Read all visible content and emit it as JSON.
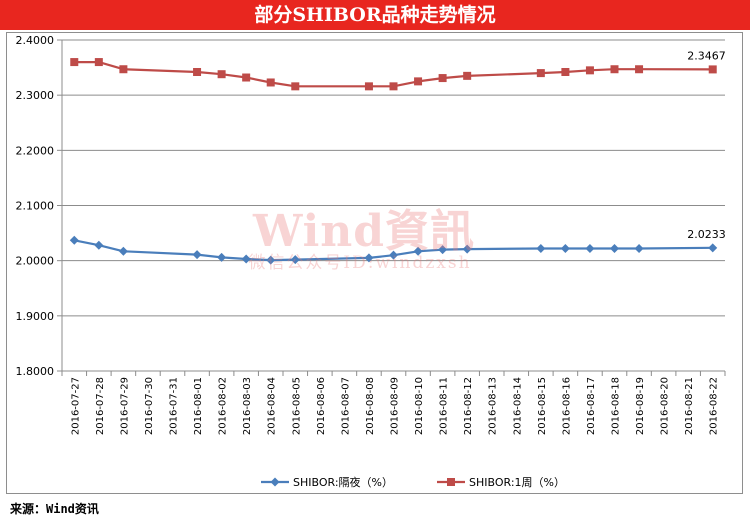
{
  "header": {
    "title": "部分SHIBOR品种走势情况"
  },
  "watermark": {
    "main": "Wind資訊",
    "sub": "微信公众号ID:windzxsh"
  },
  "source": "来源：Wind资讯",
  "colors": {
    "title_bg": "#e8261f",
    "series_overnight": "#4a7ebb",
    "series_1w": "#be4b48"
  },
  "chart_data": {
    "type": "line",
    "title": "部分SHIBOR品种走势情况",
    "xlabel": "",
    "ylabel": "",
    "ylim": [
      1.8,
      2.4
    ],
    "yticks": [
      "1.8000",
      "1.9000",
      "2.0000",
      "2.1000",
      "2.2000",
      "2.3000",
      "2.4000"
    ],
    "grid": "horizontal",
    "legend": "bottom",
    "categories": [
      "2016-07-27",
      "2016-07-28",
      "2016-07-29",
      "2016-07-30",
      "2016-07-31",
      "2016-08-01",
      "2016-08-02",
      "2016-08-03",
      "2016-08-04",
      "2016-08-05",
      "2016-08-06",
      "2016-08-07",
      "2016-08-08",
      "2016-08-09",
      "2016-08-10",
      "2016-08-11",
      "2016-08-12",
      "2016-08-13",
      "2016-08-14",
      "2016-08-15",
      "2016-08-16",
      "2016-08-17",
      "2016-08-18",
      "2016-08-19",
      "2016-08-20",
      "2016-08-21",
      "2016-08-22"
    ],
    "series": [
      {
        "name": "SHIBOR:隔夜（%）",
        "marker": "diamond",
        "values": [
          2.037,
          2.028,
          2.017,
          null,
          null,
          2.011,
          2.006,
          2.003,
          2.001,
          2.002,
          null,
          null,
          2.005,
          2.01,
          2.017,
          2.02,
          2.021,
          null,
          null,
          2.022,
          2.022,
          2.022,
          2.022,
          2.022,
          null,
          null,
          2.0233
        ],
        "last_label": "2.0233"
      },
      {
        "name": "SHIBOR:1周（%）",
        "marker": "square",
        "values": [
          2.36,
          2.36,
          2.347,
          null,
          null,
          2.342,
          2.338,
          2.332,
          2.323,
          2.316,
          null,
          null,
          2.316,
          2.316,
          2.325,
          2.331,
          2.335,
          null,
          null,
          2.34,
          2.342,
          2.345,
          2.347,
          2.347,
          null,
          null,
          2.3467
        ],
        "last_label": "2.3467"
      }
    ]
  }
}
